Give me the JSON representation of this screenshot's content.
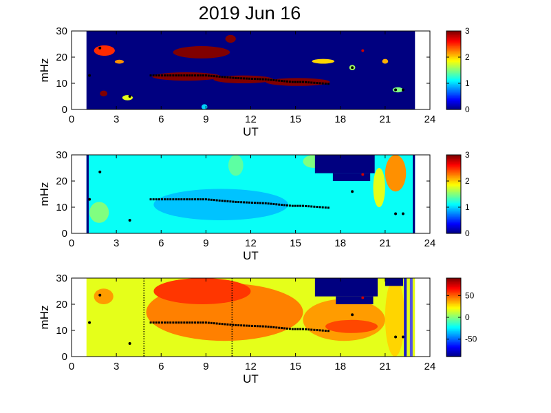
{
  "figure": {
    "title": "2019 Jun 16"
  },
  "chart_data": [
    {
      "type": "heatmap",
      "xlabel": "UT",
      "ylabel": "mHz",
      "xlim": [
        0,
        24
      ],
      "ylim": [
        0,
        30
      ],
      "xticks": [
        0,
        3,
        6,
        9,
        12,
        15,
        18,
        21,
        24
      ],
      "yticks": [
        0,
        10,
        20,
        30
      ],
      "data_x_range": [
        1,
        23
      ],
      "colorbar": {
        "lim": [
          0,
          3
        ],
        "ticks": [
          0,
          1,
          2,
          3
        ]
      },
      "background_value": 0,
      "colormap": "jet",
      "blobs": [
        {
          "value": 3.4,
          "t0": 5.4,
          "t1": 10.0,
          "f0": 11.0,
          "f1": 14.2
        },
        {
          "value": 3.4,
          "t0": 9.5,
          "t1": 13.5,
          "f0": 10.0,
          "f1": 13.0
        },
        {
          "value": 3.4,
          "t0": 13.0,
          "t1": 17.3,
          "f0": 9.0,
          "f1": 12.0
        },
        {
          "value": 3.4,
          "t0": 6.8,
          "t1": 10.6,
          "f0": 19.5,
          "f1": 24.2
        },
        {
          "value": 3.4,
          "t0": 10.3,
          "t1": 11.0,
          "f0": 25.5,
          "f1": 28.5
        },
        {
          "value": 2.5,
          "t0": 1.5,
          "t1": 2.9,
          "f0": 20.5,
          "f1": 24.5
        },
        {
          "value": 2.2,
          "t0": 2.9,
          "t1": 3.5,
          "f0": 17.5,
          "f1": 19.0
        },
        {
          "value": 3.2,
          "t0": 1.9,
          "t1": 2.4,
          "f0": 5.0,
          "f1": 7.2
        },
        {
          "value": 1.8,
          "t0": 3.4,
          "t1": 4.1,
          "f0": 3.5,
          "f1": 5.5
        },
        {
          "value": 2.0,
          "t0": 16.1,
          "t1": 17.6,
          "f0": 17.5,
          "f1": 19.3
        },
        {
          "value": 1.6,
          "t0": 18.6,
          "t1": 19.0,
          "f0": 15.0,
          "f1": 17.0
        },
        {
          "value": 2.1,
          "t0": 20.8,
          "t1": 21.2,
          "f0": 17.5,
          "f1": 19.3
        },
        {
          "value": 1.5,
          "t0": 21.5,
          "t1": 22.2,
          "f0": 6.5,
          "f1": 8.5
        },
        {
          "value": 1.0,
          "t0": 8.7,
          "t1": 9.1,
          "f0": 0,
          "f1": 2.0
        }
      ],
      "markers": [
        [
          1.2,
          13
        ],
        [
          1.9,
          23.5
        ],
        [
          3.9,
          5
        ],
        [
          5.3,
          13
        ],
        [
          7.0,
          13
        ],
        [
          9.0,
          13
        ],
        [
          11.0,
          12
        ],
        [
          13.0,
          11.5
        ],
        [
          14.8,
          10.5
        ],
        [
          15.5,
          10.5
        ],
        [
          17.2,
          9.8
        ],
        [
          18.8,
          16
        ],
        [
          19.5,
          22.5
        ],
        [
          21.7,
          7.5
        ],
        [
          22.2,
          7.5
        ]
      ]
    },
    {
      "type": "heatmap",
      "xlabel": "UT",
      "ylabel": "mHz",
      "xlim": [
        0,
        24
      ],
      "ylim": [
        0,
        30
      ],
      "xticks": [
        0,
        3,
        6,
        9,
        12,
        15,
        18,
        21,
        24
      ],
      "yticks": [
        0,
        10,
        20,
        30
      ],
      "data_x_range": [
        1,
        23
      ],
      "colorbar": {
        "lim": [
          0,
          3
        ],
        "ticks": [
          0,
          1,
          2,
          3
        ]
      },
      "background_value": 1.15,
      "colormap": "jet",
      "blobs": [
        {
          "value": 0.95,
          "t0": 5.5,
          "t1": 14.5,
          "f0": 5.0,
          "f1": 17.0
        },
        {
          "value": 1.4,
          "t0": 10.5,
          "t1": 11.5,
          "f0": 22.0,
          "f1": 30.0
        },
        {
          "value": 1.5,
          "t0": 15.5,
          "t1": 17.0,
          "f0": 25.0,
          "f1": 30.0
        },
        {
          "value": 1.8,
          "t0": 20.2,
          "t1": 21.0,
          "f0": 10.0,
          "f1": 25.0
        },
        {
          "value": 2.2,
          "t0": 21.0,
          "t1": 22.4,
          "f0": 16.0,
          "f1": 30.0
        },
        {
          "value": 1.5,
          "t0": 1.2,
          "t1": 2.5,
          "f0": 4.0,
          "f1": 12.0
        }
      ],
      "masks": [
        {
          "value": 0,
          "t0": 1.0,
          "t1": 1.15,
          "f0": 0,
          "f1": 30
        },
        {
          "value": 0,
          "t0": 22.85,
          "t1": 23.0,
          "f0": 0,
          "f1": 30
        },
        {
          "value": 0,
          "t0": 16.3,
          "t1": 20.3,
          "f0": 23.0,
          "f1": 30.0
        },
        {
          "value": 0,
          "t0": 17.5,
          "t1": 20.0,
          "f0": 20.0,
          "f1": 23.0
        }
      ],
      "markers": [
        [
          1.2,
          13
        ],
        [
          1.9,
          23.5
        ],
        [
          3.9,
          5
        ],
        [
          5.3,
          13
        ],
        [
          7.0,
          13
        ],
        [
          9.0,
          13
        ],
        [
          11.0,
          12
        ],
        [
          13.0,
          11.5
        ],
        [
          14.8,
          10.5
        ],
        [
          15.5,
          10.5
        ],
        [
          17.2,
          9.8
        ],
        [
          18.8,
          16
        ],
        [
          19.5,
          22.5
        ],
        [
          21.7,
          7.5
        ],
        [
          22.2,
          7.5
        ]
      ]
    },
    {
      "type": "heatmap",
      "xlabel": "UT",
      "ylabel": "mHz",
      "xlim": [
        0,
        24
      ],
      "ylim": [
        0,
        30
      ],
      "xticks": [
        0,
        3,
        6,
        9,
        12,
        15,
        18,
        21,
        24
      ],
      "yticks": [
        0,
        10,
        20,
        30
      ],
      "data_x_range": [
        1,
        23
      ],
      "colorbar": {
        "lim": [
          -90,
          90
        ],
        "ticks": [
          50,
          0,
          -50
        ]
      },
      "background_value": 18,
      "colormap": "jet",
      "blobs": [
        {
          "value": 45,
          "t0": 5.0,
          "t1": 15.5,
          "f0": 6.0,
          "f1": 28.0
        },
        {
          "value": 58,
          "t0": 5.5,
          "t1": 12.0,
          "f0": 20.0,
          "f1": 30.0
        },
        {
          "value": 40,
          "t0": 15.5,
          "t1": 21.0,
          "f0": 6.0,
          "f1": 22.0
        },
        {
          "value": 55,
          "t0": 17.0,
          "t1": 20.5,
          "f0": 9.0,
          "f1": 14.0
        },
        {
          "value": 40,
          "t0": 1.5,
          "t1": 2.8,
          "f0": 20.0,
          "f1": 26.0
        },
        {
          "value": 30,
          "t0": 21.0,
          "t1": 22.3,
          "f0": 0,
          "f1": 30
        }
      ],
      "masks": [
        {
          "value": -90,
          "t0": 16.3,
          "t1": 20.5,
          "f0": 23.0,
          "f1": 30.0
        },
        {
          "value": -90,
          "t0": 17.7,
          "t1": 20.2,
          "f0": 20.0,
          "f1": 23.0
        },
        {
          "value": -90,
          "t0": 21.0,
          "t1": 22.2,
          "f0": 27.0,
          "f1": 30.0
        }
      ],
      "vlines_dotted": [
        4.85,
        10.75
      ],
      "vbars": [
        {
          "t": 22.35,
          "color": "#1a1acc"
        },
        {
          "t": 22.75,
          "color": "#5555dd"
        }
      ],
      "markers": [
        [
          1.2,
          13
        ],
        [
          1.9,
          23.5
        ],
        [
          3.9,
          5
        ],
        [
          5.3,
          13
        ],
        [
          7.0,
          13
        ],
        [
          9.0,
          13
        ],
        [
          11.0,
          12
        ],
        [
          13.0,
          11.5
        ],
        [
          14.8,
          10.5
        ],
        [
          15.5,
          10.5
        ],
        [
          17.2,
          9.8
        ],
        [
          18.8,
          16
        ],
        [
          19.5,
          22.5
        ],
        [
          21.7,
          7.5
        ],
        [
          22.2,
          7.5
        ]
      ]
    }
  ]
}
